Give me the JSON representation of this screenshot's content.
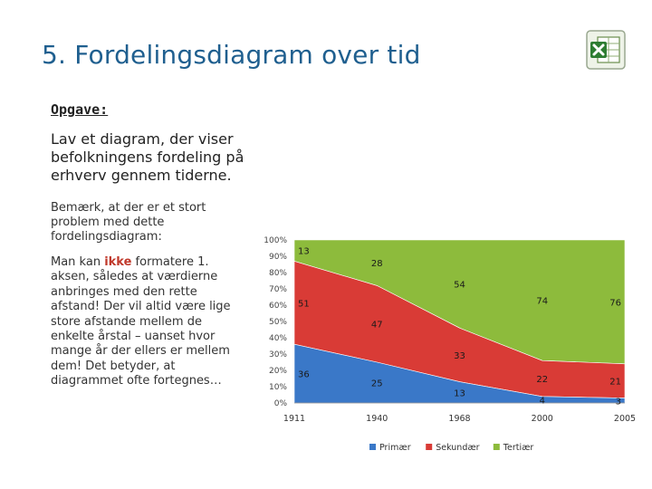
{
  "slide": {
    "title": "5. Fordelingsdiagram over tid",
    "task_label": "Opgave:",
    "task_text": "Lav et diagram, der viser befolkningens fordeling på erhverv gennem tiderne.",
    "note": "Bemærk, at der er et stort problem med dette fordelingsdiagram:",
    "note2_pre": "Man kan ",
    "note2_em": "ikke",
    "note2_post": " formatere 1. aksen, således at værdierne anbringes med den rette afstand! Der vil altid være lige store afstande mellem de enkelte årstal – uanset hvor mange år der ellers er mellem dem! Det betyder, at diagrammet ofte fortegnes…",
    "icon": "excel-icon"
  },
  "chart_data": {
    "type": "area",
    "stacked": "percent",
    "categories": [
      "1911",
      "1940",
      "1968",
      "2000",
      "2005"
    ],
    "series": [
      {
        "name": "Primær",
        "values": [
          36,
          25,
          13,
          4,
          3
        ],
        "color": "#3a78c8"
      },
      {
        "name": "Sekundær",
        "values": [
          51,
          47,
          33,
          22,
          21
        ],
        "color": "#d93b36"
      },
      {
        "name": "Tertiær",
        "values": [
          13,
          28,
          54,
          74,
          76
        ],
        "color": "#8dbb3c"
      }
    ],
    "yticks": [
      "0%",
      "10%",
      "20%",
      "30%",
      "40%",
      "50%",
      "60%",
      "70%",
      "80%",
      "90%",
      "100%"
    ],
    "legend_position": "bottom"
  }
}
